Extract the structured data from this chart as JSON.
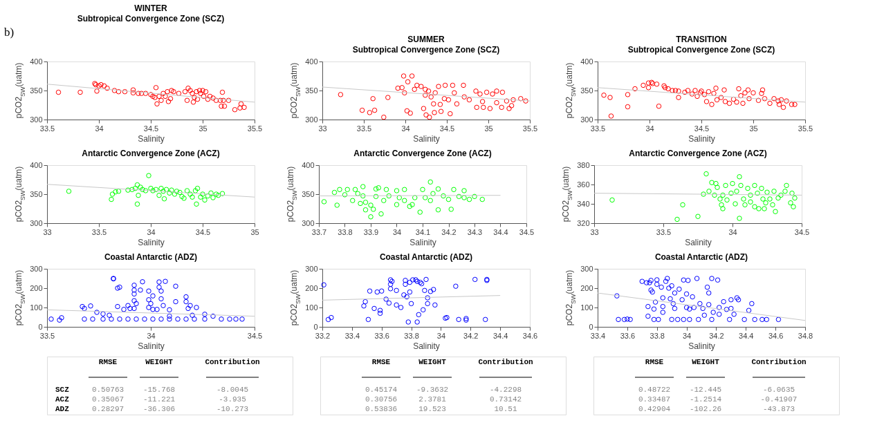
{
  "chart_data": [
    {
      "type": "scatter",
      "title": "WINTER",
      "subtitle": "Subtropical Convergence Zone (SCZ)",
      "annotations": [
        "b)"
      ],
      "xlabel": "Salinity",
      "ylabel": "pCO2$_{SW}$(uatm)",
      "xlim": [
        33.5,
        35.5
      ],
      "xticks": [
        33.5,
        34,
        34.5,
        35,
        35.5
      ],
      "ylim": [
        300,
        400
      ],
      "yticks": [
        300,
        350,
        400
      ],
      "marker": "circle",
      "series": [
        {
          "color": "#ff0000",
          "x": [
            33.61,
            33.82,
            33.96,
            33.97,
            33.98,
            34.0,
            34.02,
            34.05,
            34.08,
            34.15,
            34.19,
            34.25,
            34.33,
            34.33,
            34.38,
            34.41,
            34.45,
            34.5,
            34.52,
            34.54,
            34.55,
            34.56,
            34.58,
            34.6,
            34.62,
            34.64,
            34.66,
            34.67,
            34.69,
            34.7,
            34.72,
            34.77,
            34.83,
            34.85,
            34.86,
            34.88,
            34.9,
            34.91,
            34.92,
            34.94,
            34.95,
            34.97,
            34.98,
            35.0,
            35.01,
            35.03,
            35.05,
            35.07,
            35.1,
            35.13,
            35.17,
            35.18,
            35.19,
            35.2,
            35.21,
            35.25,
            35.31,
            35.36,
            35.37,
            35.4
          ],
          "values": [
            347,
            347,
            362,
            360,
            349,
            358,
            360,
            358,
            354,
            350,
            348,
            348,
            351,
            346,
            345,
            345,
            345,
            343,
            340,
            338,
            355,
            327,
            340,
            333,
            345,
            340,
            348,
            331,
            336,
            350,
            348,
            345,
            348,
            333,
            354,
            350,
            345,
            330,
            338,
            348,
            335,
            350,
            345,
            350,
            340,
            348,
            335,
            340,
            337,
            333,
            333,
            323,
            347,
            333,
            323,
            333,
            317,
            320,
            327,
            321
          ]
        },
        {
          "type": "line",
          "color": "#c8c8c8",
          "marker": "none",
          "line_style": "solid",
          "x": [
            33.5,
            35.5
          ],
          "values": [
            361,
            330
          ]
        }
      ]
    },
    {
      "type": "scatter",
      "title": "SUMMER",
      "subtitle": "Subtropical Convergence Zone (SCZ)",
      "xlabel": "Salinity",
      "ylabel": "pCO2$_{SW}$(uatm)",
      "xlim": [
        33,
        35.5
      ],
      "xticks": [
        33,
        33.5,
        34,
        34.5,
        35,
        35.5
      ],
      "ylim": [
        300,
        400
      ],
      "yticks": [
        300,
        350,
        400
      ],
      "marker": "circle",
      "series": [
        {
          "color": "#ff0000",
          "x": [
            33.22,
            33.48,
            33.57,
            33.61,
            33.63,
            33.74,
            33.79,
            33.91,
            33.98,
            33.99,
            34.02,
            34.06,
            34.03,
            34.08,
            34.11,
            34.14,
            34.19,
            34.22,
            34.24,
            34.25,
            34.29,
            34.28,
            34.31,
            34.34,
            34.35,
            34.4,
            34.42,
            34.43,
            34.47,
            34.48,
            34.52,
            34.54,
            34.57,
            34.59,
            34.62,
            34.7,
            34.71,
            34.77,
            34.85,
            34.86,
            34.9,
            34.93,
            34.94,
            34.98,
            35.02,
            35.05,
            35.1,
            35.1,
            35.16,
            35.17,
            35.22,
            35.25,
            35.28,
            35.3,
            35.39,
            35.45,
            33.96,
            34.36,
            34.24
          ],
          "values": [
            343,
            316,
            312,
            336,
            316,
            304,
            338,
            354,
            375,
            346,
            315,
            311,
            365,
            375,
            352,
            359,
            357,
            319,
            342,
            308,
            304,
            349,
            339,
            327,
            312,
            357,
            326,
            314,
            336,
            359,
            334,
            310,
            359,
            346,
            327,
            359,
            339,
            334,
            349,
            321,
            344,
            331,
            321,
            347,
            319,
            344,
            349,
            329,
            321,
            347,
            332,
            319,
            324,
            334,
            336,
            332,
            355,
            346,
            352
          ]
        },
        {
          "type": "line",
          "color": "#c8c8c8",
          "marker": "none",
          "line_style": "solid",
          "x": [
            33,
            35.5
          ],
          "values": [
            356,
            332
          ]
        }
      ]
    },
    {
      "type": "scatter",
      "title": "TRANSITION",
      "subtitle": "Subtropical Convergence Zone (SCZ)",
      "xlabel": "Salinity",
      "ylabel": "pCO2$_{SW}$(uatm)",
      "xlim": [
        33.5,
        35.5
      ],
      "xticks": [
        33.5,
        34,
        34.5,
        35,
        35.5
      ],
      "ylim": [
        300,
        400
      ],
      "yticks": [
        300,
        350,
        400
      ],
      "marker": "circle",
      "series": [
        {
          "color": "#ff0000",
          "x": [
            33.56,
            33.62,
            33.63,
            33.79,
            33.79,
            33.86,
            33.94,
            33.99,
            33.99,
            34.02,
            34.03,
            34.07,
            34.09,
            34.14,
            34.15,
            34.18,
            34.22,
            34.25,
            34.28,
            34.28,
            34.34,
            34.37,
            34.41,
            34.44,
            34.46,
            34.49,
            34.5,
            34.53,
            34.55,
            34.57,
            34.6,
            34.62,
            34.64,
            34.65,
            34.69,
            34.72,
            34.73,
            34.77,
            34.81,
            34.84,
            34.86,
            34.88,
            34.9,
            34.92,
            34.95,
            34.96,
            35.0,
            35.05,
            35.08,
            35.09,
            35.11,
            35.16,
            35.2,
            35.24,
            35.25,
            35.27,
            35.29,
            35.32,
            35.37,
            35.4
          ],
          "values": [
            342,
            338,
            306,
            343,
            322,
            353,
            359,
            355,
            363,
            364,
            362,
            361,
            323,
            358,
            355,
            353,
            350,
            350,
            349,
            338,
            347,
            350,
            344,
            350,
            340,
            346,
            349,
            343,
            331,
            348,
            326,
            345,
            354,
            334,
            338,
            351,
            331,
            328,
            335,
            330,
            353,
            341,
            328,
            346,
            351,
            336,
            346,
            333,
            345,
            351,
            336,
            328,
            336,
            332,
            326,
            334,
            321,
            332,
            326,
            326
          ]
        },
        {
          "type": "line",
          "color": "#c8c8c8",
          "marker": "none",
          "line_style": "solid",
          "x": [
            33.5,
            35.5
          ],
          "values": [
            355,
            330
          ]
        }
      ]
    },
    {
      "type": "scatter",
      "title": "Antarctic Convergence Zone (ACZ)",
      "xlabel": "Salinity",
      "ylabel": "pCO2$_{SW}$(uatm)",
      "xlim": [
        33,
        35
      ],
      "xticks": [
        33,
        33.5,
        34,
        34.5,
        35
      ],
      "ylim": [
        300,
        400
      ],
      "yticks": [
        300,
        350,
        400
      ],
      "marker": "circle",
      "series": [
        {
          "color": "#00ff00",
          "x": [
            33.21,
            33.62,
            33.63,
            33.66,
            33.69,
            33.78,
            33.82,
            33.85,
            33.87,
            33.87,
            33.88,
            33.9,
            33.92,
            33.95,
            33.98,
            34.0,
            34.02,
            34.05,
            34.08,
            34.1,
            34.12,
            34.13,
            34.15,
            34.18,
            34.2,
            34.23,
            34.25,
            34.28,
            34.3,
            34.32,
            34.35,
            34.38,
            34.4,
            34.43,
            34.44,
            34.45,
            34.48,
            34.5,
            34.52,
            34.55,
            34.58,
            34.6,
            34.63,
            34.65,
            34.69
          ],
          "values": [
            355,
            341,
            350,
            354,
            355,
            357,
            358,
            360,
            366,
            333,
            348,
            362,
            358,
            356,
            382,
            360,
            356,
            358,
            348,
            360,
            355,
            342,
            358,
            352,
            357,
            350,
            355,
            353,
            346,
            343,
            356,
            350,
            345,
            356,
            333,
            360,
            345,
            350,
            340,
            347,
            352,
            344,
            350,
            348,
            351
          ]
        },
        {
          "type": "line",
          "color": "#c8c8c8",
          "marker": "none",
          "line_style": "solid",
          "x": [
            33,
            35
          ],
          "values": [
            367,
            345
          ]
        }
      ]
    },
    {
      "type": "scatter",
      "title": "Antarctic Convergence Zone (ACZ)",
      "xlabel": "Salinity",
      "ylabel": "pCO2$_{SW}$(uatm)",
      "xlim": [
        33.7,
        34.5
      ],
      "xticks": [
        33.7,
        33.8,
        33.9,
        34,
        34.1,
        34.2,
        34.3,
        34.4,
        34.5
      ],
      "ylim": [
        300,
        400
      ],
      "yticks": [
        300,
        350,
        400
      ],
      "marker": "circle",
      "series": [
        {
          "color": "#00ff00",
          "x": [
            33.72,
            33.76,
            33.77,
            33.78,
            33.8,
            33.81,
            33.83,
            33.84,
            33.85,
            33.86,
            33.87,
            33.87,
            33.88,
            33.88,
            33.9,
            33.9,
            33.91,
            33.92,
            33.92,
            33.93,
            33.94,
            33.95,
            33.96,
            33.97,
            34.0,
            34.0,
            34.01,
            34.03,
            34.03,
            34.05,
            34.06,
            34.07,
            34.09,
            34.1,
            34.11,
            34.13,
            34.13,
            34.14,
            34.16,
            34.16,
            34.18,
            34.2,
            34.21,
            34.22,
            34.24,
            34.26,
            34.26,
            34.28,
            34.3,
            34.33
          ],
          "values": [
            337,
            353,
            331,
            358,
            349,
            358,
            339,
            358,
            351,
            334,
            363,
            347,
            323,
            336,
            311,
            331,
            324,
            359,
            346,
            361,
            316,
            339,
            358,
            347,
            332,
            356,
            344,
            358,
            339,
            329,
            332,
            344,
            319,
            358,
            344,
            371,
            339,
            351,
            359,
            323,
            347,
            341,
            324,
            358,
            346,
            356,
            344,
            341,
            346,
            341
          ]
        },
        {
          "type": "line",
          "color": "#c8c8c8",
          "marker": "none",
          "line_style": "solid",
          "x": [
            33.7,
            34.4
          ],
          "values": [
            347,
            348
          ]
        }
      ]
    },
    {
      "type": "scatter",
      "title": "Antarctic Convergence Zone (ACZ)",
      "xlabel": "Salinity",
      "ylabel": "pCO2$_{SW}$(uatm)",
      "xlim": [
        33,
        34.5
      ],
      "xticks": [
        33,
        33.5,
        34,
        34.5
      ],
      "ylim": [
        320,
        380
      ],
      "yticks": [
        320,
        340,
        360,
        380
      ],
      "marker": "circle",
      "series": [
        {
          "color": "#00ff00",
          "x": [
            33.13,
            33.6,
            33.64,
            33.75,
            33.79,
            33.81,
            33.83,
            33.85,
            33.87,
            33.88,
            33.89,
            33.91,
            33.92,
            33.93,
            33.93,
            33.95,
            33.96,
            33.99,
            34.0,
            34.02,
            34.03,
            34.05,
            34.05,
            34.06,
            34.08,
            34.09,
            34.11,
            34.13,
            34.13,
            34.16,
            34.16,
            34.18,
            34.19,
            34.21,
            34.22,
            34.23,
            34.24,
            34.25,
            34.27,
            34.29,
            34.3,
            34.31,
            34.33,
            34.35,
            34.38,
            34.39,
            34.42,
            34.43,
            34.45,
            34.44
          ],
          "values": [
            344,
            324,
            339,
            327,
            350,
            371,
            353,
            362,
            349,
            361,
            357,
            345,
            339,
            335,
            349,
            359,
            344,
            351,
            361,
            340,
            353,
            368,
            325,
            359,
            345,
            339,
            356,
            349,
            342,
            359,
            337,
            351,
            335,
            356,
            345,
            335,
            341,
            352,
            345,
            339,
            353,
            332,
            346,
            349,
            353,
            359,
            341,
            351,
            346,
            337
          ]
        },
        {
          "type": "line",
          "color": "#c8c8c8",
          "marker": "none",
          "line_style": "solid",
          "x": [
            33,
            34.5
          ],
          "values": [
            351,
            349
          ]
        }
      ]
    },
    {
      "type": "scatter",
      "title": "Coastal Antarctic (ADZ)",
      "xlabel": "Salinity",
      "ylabel": "pCO2$_{SW}$(uatm)",
      "xlim": [
        33.5,
        34.5
      ],
      "xticks": [
        33.5,
        34,
        34.5
      ],
      "ylim": [
        0,
        300
      ],
      "yticks": [
        0,
        100,
        200,
        300
      ],
      "marker": "circle",
      "series": [
        {
          "color": "#0000ff",
          "x": [
            33.52,
            33.56,
            33.57,
            33.67,
            33.68,
            33.71,
            33.74,
            33.77,
            33.8,
            33.82,
            33.82,
            33.84,
            33.85,
            33.84,
            33.87,
            33.89,
            33.9,
            33.92,
            33.92,
            33.92,
            33.92,
            33.92,
            33.93,
            33.95,
            33.96,
            33.99,
            33.99,
            34.0,
            33.99,
            34.01,
            34.01,
            34.03,
            34.04,
            34.04,
            34.05,
            34.05,
            34.06,
            34.07,
            34.09,
            34.09,
            34.12,
            34.12,
            34.17,
            34.17,
            34.19,
            34.18,
            34.2,
            34.22,
            34.26,
            34.3,
            33.68,
            33.72,
            33.77,
            33.81,
            33.85,
            33.89,
            33.93,
            33.97,
            34.01,
            34.05,
            34.09,
            34.13,
            34.17,
            34.21,
            34.26,
            34.34,
            34.38,
            34.41,
            34.44
          ],
          "values": [
            40,
            35,
            47,
            105,
            95,
            108,
            75,
            67,
            60,
            250,
            248,
            200,
            205,
            105,
            90,
            110,
            95,
            215,
            190,
            170,
            135,
            95,
            120,
            190,
            233,
            185,
            140,
            120,
            100,
            160,
            90,
            90,
            232,
            205,
            145,
            185,
            110,
            235,
            88,
            55,
            210,
            130,
            155,
            130,
            110,
            95,
            60,
            100,
            65,
            55,
            40,
            40,
            40,
            40,
            40,
            40,
            40,
            40,
            40,
            40,
            40,
            40,
            40,
            40,
            40,
            40,
            40,
            40,
            40
          ]
        },
        {
          "type": "line",
          "color": "#c8c8c8",
          "marker": "none",
          "line_style": "solid",
          "x": [
            33.5,
            34.5
          ],
          "values": [
            88,
            55
          ]
        }
      ]
    },
    {
      "type": "scatter",
      "title": "Coastal Antarctic (ADZ)",
      "xlabel": "Salinity",
      "ylabel": "pCO2$_{SW}$(uatm)",
      "xlim": [
        33.2,
        34.6
      ],
      "xticks": [
        33.2,
        33.4,
        33.6,
        33.8,
        34,
        34.2,
        34.4,
        34.6
      ],
      "ylim": [
        0,
        300
      ],
      "yticks": [
        0,
        100,
        200,
        300
      ],
      "marker": "circle",
      "series": [
        {
          "color": "#0000ff",
          "x": [
            33.21,
            33.24,
            33.26,
            33.48,
            33.49,
            33.51,
            33.52,
            33.55,
            33.57,
            33.59,
            33.59,
            33.6,
            33.63,
            33.65,
            33.66,
            33.66,
            33.66,
            33.67,
            33.7,
            33.7,
            33.73,
            33.75,
            33.76,
            33.76,
            33.77,
            33.78,
            33.79,
            33.79,
            33.8,
            33.81,
            33.83,
            33.84,
            33.84,
            33.85,
            33.86,
            33.87,
            33.88,
            33.89,
            33.9,
            33.91,
            33.91,
            33.93,
            33.95,
            33.96,
            34.03,
            34.04,
            34.1,
            34.12,
            34.17,
            34.17,
            34.23,
            34.3,
            34.31,
            34.31
          ],
          "values": [
            217,
            38,
            48,
            108,
            130,
            38,
            185,
            95,
            180,
            85,
            70,
            185,
            143,
            123,
            243,
            220,
            197,
            235,
            188,
            113,
            100,
            165,
            240,
            220,
            155,
            25,
            230,
            180,
            120,
            243,
            243,
            25,
            235,
            63,
            230,
            223,
            88,
            188,
            245,
            150,
            120,
            183,
            193,
            113,
            45,
            48,
            210,
            38,
            43,
            35,
            245,
            38,
            245,
            240
          ]
        },
        {
          "type": "line",
          "color": "#c8c8c8",
          "marker": "none",
          "line_style": "solid",
          "x": [
            33.2,
            34.4
          ],
          "values": [
            138,
            162
          ]
        }
      ]
    },
    {
      "type": "scatter",
      "title": "Coastal Antarctic (ADZ)",
      "xlabel": "Salinity",
      "ylabel": "pCO2$_{SW}$(uatm)",
      "xlim": [
        33.4,
        34.8
      ],
      "xticks": [
        33.4,
        33.6,
        33.8,
        34,
        34.2,
        34.4,
        34.6,
        34.8
      ],
      "ylim": [
        0,
        300
      ],
      "yticks": [
        0,
        100,
        200,
        300
      ],
      "marker": "circle",
      "series": [
        {
          "color": "#0000ff",
          "x": [
            33.53,
            33.54,
            33.58,
            33.6,
            33.62,
            33.7,
            33.73,
            33.74,
            33.74,
            33.75,
            33.76,
            33.76,
            33.77,
            33.78,
            33.78,
            33.79,
            33.8,
            33.8,
            33.81,
            33.83,
            33.84,
            33.84,
            33.84,
            33.86,
            33.87,
            33.88,
            33.89,
            33.9,
            33.9,
            33.91,
            33.92,
            33.92,
            33.94,
            33.95,
            33.97,
            33.98,
            33.98,
            34.0,
            34.0,
            34.01,
            34.02,
            34.02,
            34.04,
            34.05,
            34.07,
            34.08,
            34.09,
            34.11,
            34.12,
            34.14,
            34.15,
            34.15,
            34.17,
            34.17,
            34.18,
            34.21,
            34.22,
            34.22,
            34.25,
            34.27,
            34.29,
            34.3,
            34.3,
            34.32,
            34.34,
            34.35,
            34.39,
            34.42,
            34.44,
            34.46,
            34.51,
            34.54,
            34.62
          ],
          "values": [
            160,
            38,
            38,
            40,
            38,
            235,
            228,
            55,
            105,
            228,
            240,
            190,
            180,
            92,
            38,
            128,
            220,
            243,
            38,
            205,
            75,
            105,
            150,
            235,
            250,
            200,
            145,
            212,
            38,
            120,
            175,
            95,
            38,
            195,
            140,
            38,
            242,
            100,
            170,
            240,
            92,
            38,
            155,
            100,
            250,
            38,
            120,
            95,
            60,
            205,
            175,
            115,
            38,
            250,
            75,
            242,
            100,
            65,
            130,
            90,
            38,
            95,
            140,
            65,
            150,
            140,
            38,
            85,
            120,
            38,
            38,
            38,
            38
          ]
        },
        {
          "type": "line",
          "color": "#c8c8c8",
          "marker": "none",
          "line_style": "solid",
          "x": [
            33.4,
            34.8
          ],
          "values": [
            175,
            33
          ]
        }
      ]
    },
    {
      "type": "other",
      "categories": [
        "RMSE",
        "WEIGHT",
        "Contribution"
      ],
      "y_categories": [
        "SCZ",
        "ACZ",
        "ADZ"
      ],
      "cell_labels": [
        [
          "0.50763",
          "-15.768",
          "-8.0045"
        ],
        [
          "0.35067",
          "-11.221",
          "-3.935"
        ],
        [
          "0.28297",
          "-36.306",
          "-10.273"
        ]
      ]
    },
    {
      "type": "other",
      "categories": [
        "RMSE",
        "WEIGHT",
        "Contribution"
      ],
      "cell_labels": [
        [
          "0.45174",
          "-9.3632",
          "-4.2298"
        ],
        [
          "0.30756",
          "2.3781",
          "0.73142"
        ],
        [
          "0.53836",
          "19.523",
          "10.51"
        ]
      ]
    },
    {
      "type": "other",
      "categories": [
        "RMSE",
        "WEIGHT",
        "Contribution"
      ],
      "cell_labels": [
        [
          "0.48722",
          "-12.445",
          "-6.0635"
        ],
        [
          "0.33487",
          "-1.2514",
          "-0.41907"
        ],
        [
          "0.42904",
          "-102.26",
          "-43.873"
        ]
      ]
    }
  ]
}
